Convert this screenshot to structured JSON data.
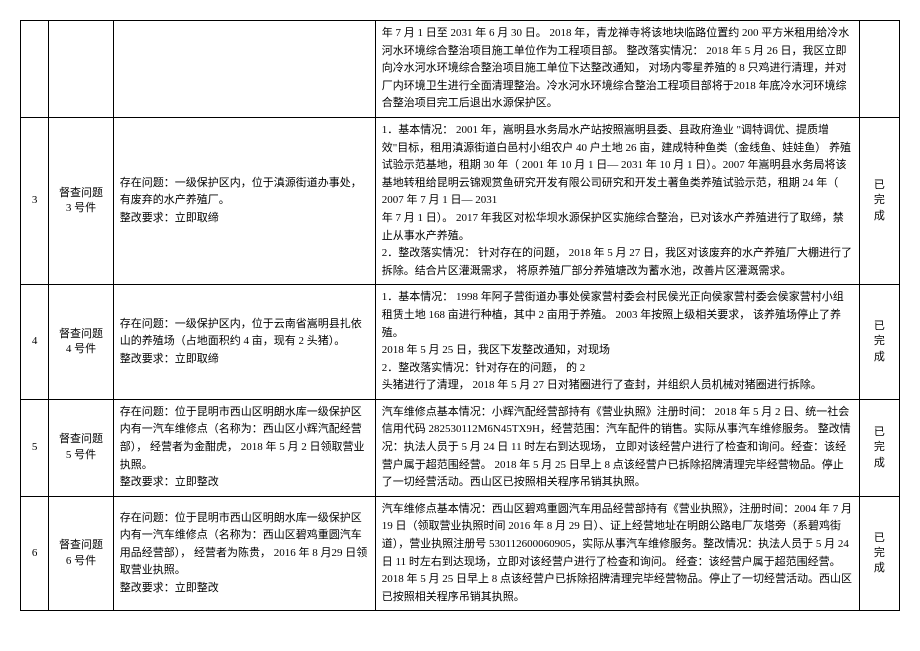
{
  "rows": [
    {
      "idx": "",
      "case": "",
      "issue": "",
      "detail": "年 7 月 1 日至 2031 年 6 月 30 日。 2018 年，青龙禅寺将该地块临路位置约 200 平方米租用给冷水河水环境综合整治项目施工单位作为工程项目部。  整改落实情况： 2018 年 5 月 26 日，我区立即向冷水河水环境综合整治项目施工单位下达整改通知， 对场内零星养殖的 8 只鸡进行清理，并对厂内环境卫生进行全面清理整治。冷水河水环境综合整治工程项目部将于2018 年底冷水河环境综合整治项目完工后退出水源保护区。",
      "status": ""
    },
    {
      "idx": "3",
      "case": "督查问题\n3 号件",
      "issue": "存在问题：一级保护区内，位于滇源街道办事处，有废弃的水产养殖厂。\n整改要求：立即取缔",
      "detail": "1．基本情况： 2001 年，嵩明县水务局水产站按照嵩明县委、县政府渔业 \"调特调优、提质增效\"目标，租用滇源街道白邑村小组农户      40 户土地 26 亩，建成特种鱼类（金线鱼、娃娃鱼）  养殖试验示范基地，租期  30 年（ 2001 年 10 月 1 日— 2031 年 10 月 1 日）。2007 年嵩明县水务局将该基地转租给昆明云锦观赏鱼研究开发有限公司研究和开发土著鱼类养殖试验示范，租期 24 年（ 2007 年 7 月 1 日— 2031\n年                                                7 月 1 日）。 2017 年我区对松华坝水源保护区实施综合整治，已对该水产养殖进行了取缔，禁止从事水产养殖。\n2．整改落实情况： 针对存在的问题， 2018 年 5 月 27 日，我区对该废弃的水产养殖厂大棚进行了拆除。结合片区灌溉需求，  将原养殖厂部分养殖塘改为蓄水池，改善片区灌溉需求。",
      "status": "已完成"
    },
    {
      "idx": "4",
      "case": "督查问题\n4 号件",
      "issue": "存在问题：一级保护区内，位于云南省嵩明县扎依山的养殖场（占地面积约     4 亩，现有 2 头猪）。\n整改要求：立即取缔",
      "detail": "1．基本情况： 1998 年阿子营街道办事处侯家营村委会村民侯光正向侯家营村委会侯家营村小组租赁土地  168 亩进行种植，其中 2 亩用于养殖。 2003 年按照上级相关要求，   该养殖场停止了养殖。\n                                                2018 年 5 月 25 日，我区下发整改通知，对现场\n2．整改落实情况：针对存在的问题，            的                                                      2\n头猪进行了清理， 2018 年 5 月 27 日对猪圈进行了查封，并组织人员机械对猪圈进行拆除。",
      "status": "已完成"
    },
    {
      "idx": "5",
      "case": "督查问题\n5 号件",
      "issue": "存在问题：位于昆明市西山区明朗水库一级保护区内有一汽车维修点（名称为：西山区小辉汽配经营部），  经营者为金酣虎，   2018 年 5 月 2 日领取营业执照。\n整改要求：立即整改",
      "detail": "汽车维修点基本情况：小辉汽配经营部持有《营业执照》注册时间：         2018 年 5 月 2 日、统一社会信用代码 282530112M6N45TX9H，经营范围：汽车配件的销售。实际从事汽车维修服务。 整改情况：执法人员于 5 月 24 日 11 时左右到达现场，   立即对该经营户进行了检查和询问。经查：该经营户属于超范围经营。   2018 年 5 月 25 日早上 8 点该经营户已拆除招牌清理完毕经营物品。停止了一切经营活动。西山区已按照相关程序吊销其执照。",
      "status": "已完成"
    },
    {
      "idx": "6",
      "case": "督查问题\n6 号件",
      "issue": "存在问题：位于昆明市西山区明朗水库一级保护区内有一汽车维修点（名称为：西山区碧鸡重圆汽车用品经营部），   经营者为陈贵，   2016 年 8 月29 日领取营业执照。\n整改要求：立即整改",
      "detail": "汽车维修点基本情况：西山区碧鸡重圆汽车用品经营部持有《营业执照》，注册时间：2004 年 7 月 19 日（领取营业执照时间  2016 年 8 月 29 日）、证上经营地址在明朗公路电厂灰塔旁（系碧鸡街道），营业执照注册号     530112600060905，实际从事汽车维修服务。整改情况：执法人员于 5 月 24 日 11 时左右到达现场，立即对该经营户进行了检查和询问。 经查：该经营户属于超范围经营。  2018 年 5 月 25 日早上 8 点该经营户已拆除招牌清理完毕经营物品。停止了一切经营活动。西山区已按照相关程序吊销其执照。",
      "status": "已完成"
    }
  ]
}
